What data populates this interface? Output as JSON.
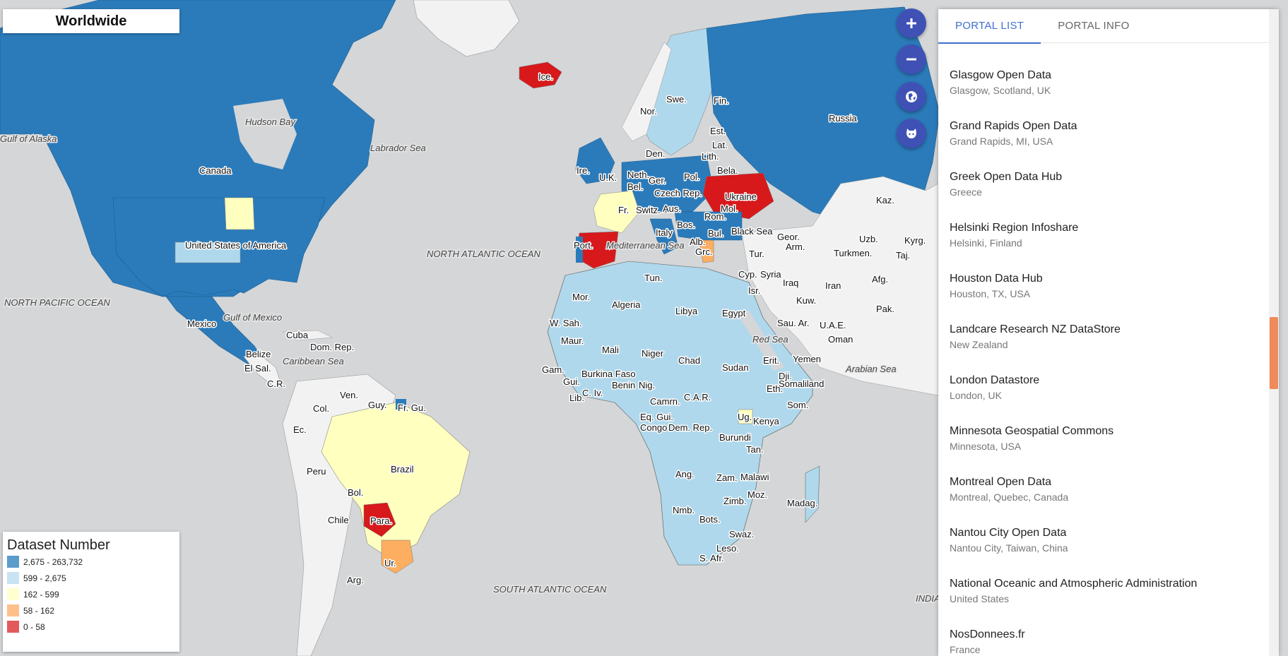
{
  "map": {
    "title": "Worldwide",
    "country_labels": [
      "Ice.",
      "Nor.",
      "Swe.",
      "Fin.",
      "Russia",
      "Est.",
      "Lat.",
      "Lith.",
      "Den.",
      "Bela.",
      "Ire.",
      "U.K.",
      "Neth.",
      "Ger.",
      "Pol.",
      "Bel.",
      "Czech Rep.",
      "Ukraine",
      "Fr.",
      "Switz.",
      "Aus.",
      "Mol.",
      "Rom.",
      "Black Sea",
      "Bos.",
      "Italy",
      "Bul.",
      "Alb.",
      "Grc.",
      "Port.",
      "Mediterranean Sea",
      "Tur.",
      "Geor.",
      "Arm.",
      "Kaz.",
      "Uzb.",
      "Kyrg.",
      "Turkmen.",
      "Taj.",
      "Afg.",
      "Pak.",
      "Cyp.",
      "Syria",
      "Isr.",
      "Iraq",
      "Iran",
      "Kuw.",
      "Sau. Ar.",
      "U.A.E.",
      "Oman",
      "Yemen",
      "Red Sea",
      "Arabian Sea",
      "Tun.",
      "Mor.",
      "Algeria",
      "Libya",
      "Egypt",
      "W. Sah.",
      "Maur.",
      "Mali",
      "Niger",
      "Chad",
      "Sudan",
      "Erit.",
      "Dji.",
      "Somaliland",
      "Eth.",
      "Som.",
      "Gam.",
      "Gui.",
      "Burkina Faso",
      "Benin",
      "Nig.",
      "Lib.",
      "C. Iv.",
      "Camrn.",
      "C.A.R.",
      "Eq. Gui.",
      "Congo",
      "Dem. Rep.",
      "Ug.",
      "Kenya",
      "Burundi",
      "Tan.",
      "Ang.",
      "Zam.",
      "Malawi",
      "Moz.",
      "Zimb.",
      "Madag.",
      "Nmb.",
      "Bots.",
      "Swaz.",
      "Leso.",
      "S. Afr.",
      "Canada",
      "Hudson Bay",
      "Labrador Sea",
      "Gulf of Alaska",
      "United States of America",
      "Mexico",
      "Gulf of Mexico",
      "Cuba",
      "Dom. Rep.",
      "Belize",
      "Caribbean Sea",
      "El Sal.",
      "C.R.",
      "Ven.",
      "Guy.",
      "Fr. Gu.",
      "Col.",
      "Ec.",
      "Peru",
      "Brazil",
      "Bol.",
      "Para.",
      "Chile",
      "Ur.",
      "Arg."
    ],
    "ocean_labels": [
      "NORTH ATLANTIC OCEAN",
      "NORTH PACIFIC OCEAN",
      "SOUTH ATLANTIC OCEAN",
      "INDIA"
    ],
    "colors": {
      "high": "#2b7bba",
      "mid_high": "#b0d8ec",
      "mid": "#ffffbf",
      "mid_low": "#fdae61",
      "low": "#d7191c",
      "no_data": "#f2f2f2",
      "water": "#d4d6d8"
    }
  },
  "controls": {
    "zoom_in_icon": "plus-icon",
    "zoom_out_icon": "minus-icon",
    "globe_icon": "globe-icon",
    "github_icon": "github-icon"
  },
  "panel": {
    "tabs": [
      "PORTAL LIST",
      "PORTAL INFO"
    ],
    "active_tab": "PORTAL LIST",
    "portals": [
      {
        "name": "Glasgow Open Data",
        "location": "Glasgow, Scotland, UK"
      },
      {
        "name": "Grand Rapids Open Data",
        "location": "Grand Rapids, MI, USA"
      },
      {
        "name": "Greek Open Data Hub",
        "location": "Greece"
      },
      {
        "name": "Helsinki Region Infoshare",
        "location": "Helsinki, Finland"
      },
      {
        "name": "Houston Data Hub",
        "location": "Houston, TX, USA"
      },
      {
        "name": "Landcare Research NZ DataStore",
        "location": "New Zealand"
      },
      {
        "name": "London Datastore",
        "location": "London, UK"
      },
      {
        "name": "Minnesota Geospatial Commons",
        "location": "Minnesota, USA"
      },
      {
        "name": "Montreal Open Data",
        "location": "Montreal, Quebec, Canada"
      },
      {
        "name": "Nantou City Open Data",
        "location": "Nantou City, Taiwan, China"
      },
      {
        "name": "National Oceanic and Atmospheric Administration",
        "location": "United States"
      },
      {
        "name": "NosDonnees.fr",
        "location": "France"
      }
    ]
  },
  "legend": {
    "title": "Dataset Number",
    "ranges": [
      {
        "label": "2,675 - 263,732",
        "color": "#5b9ccb"
      },
      {
        "label": "599 - 2,675",
        "color": "#c8e3f1"
      },
      {
        "label": "162 - 599",
        "color": "#ffffd0"
      },
      {
        "label": "58 - 162",
        "color": "#fdc08a"
      },
      {
        "label": "0 - 58",
        "color": "#e35a5c"
      }
    ]
  }
}
